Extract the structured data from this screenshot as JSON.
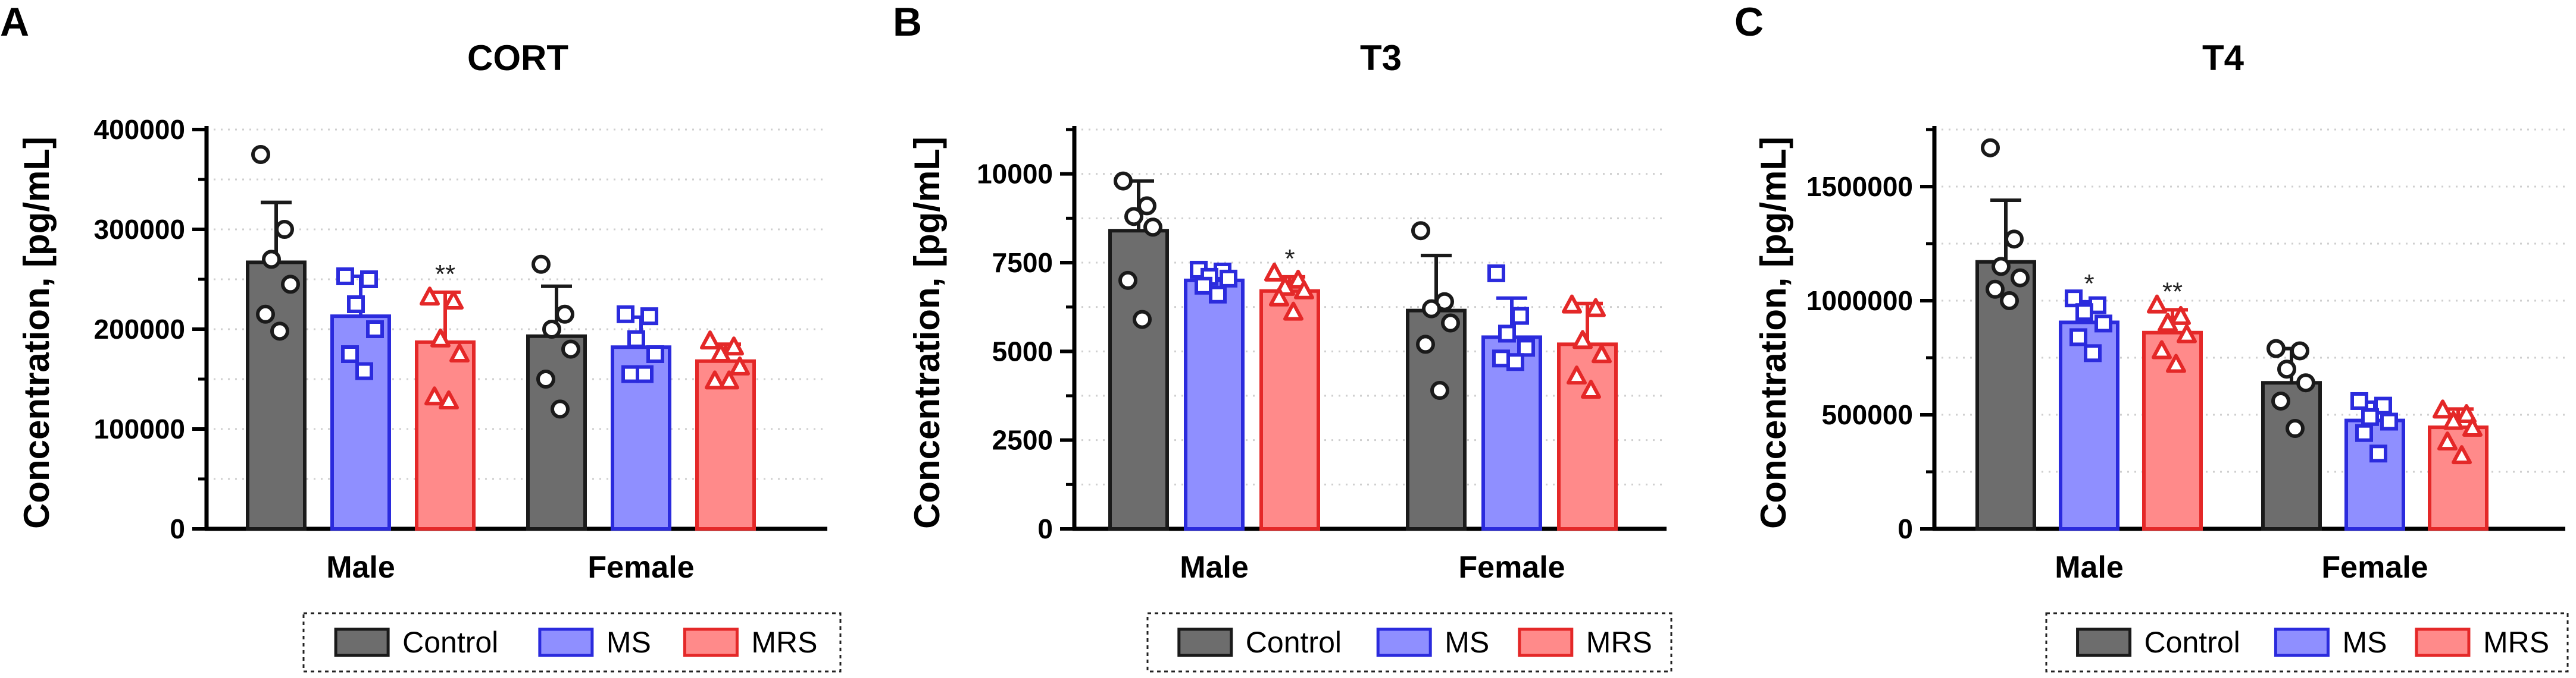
{
  "colors": {
    "control": "#6d6d6d",
    "ms": "#8f8fff",
    "mrs": "#ff8a8a",
    "control_edge": "#1a1a1a",
    "ms_edge": "#2b2bdd",
    "mrs_edge": "#e42828",
    "grid": "#cfcfcf"
  },
  "legend": {
    "control": "Control",
    "ms": "MS",
    "mrs": "MRS"
  },
  "chart_data": [
    {
      "panel_letter": "A",
      "type": "bar",
      "title": "CORT",
      "ylabel": "Concentration, [pg/mL]",
      "xlabel": "",
      "ylim": [
        0,
        400000
      ],
      "y_ticks": [
        0,
        100000,
        200000,
        300000,
        400000
      ],
      "y_tick_labels": [
        "0",
        "100000",
        "200000",
        "300000",
        "400000"
      ],
      "categories": [
        "Male",
        "Female"
      ],
      "series": [
        {
          "name": "Control",
          "key": "control",
          "values": [
            267000,
            193000
          ],
          "sd": [
            60000,
            50000
          ],
          "points": [
            [
              375000,
              300000,
              270000,
              245000,
              215000,
              198000
            ],
            [
              265000,
              215000,
              200000,
              180000,
              150000,
              120000
            ]
          ]
        },
        {
          "name": "MS",
          "key": "ms",
          "values": [
            213000,
            182000
          ],
          "sd": [
            40000,
            30000
          ],
          "points": [
            [
              253000,
              250000,
              225000,
              200000,
              175000,
              158000
            ],
            [
              215000,
              213000,
              190000,
              175000,
              155000,
              155000
            ]
          ]
        },
        {
          "name": "MRS",
          "key": "mrs",
          "values": [
            187000,
            168000
          ],
          "sd": [
            50000,
            17000
          ],
          "points": [
            [
              232000,
              228000,
              190000,
              175000,
              132000,
              128000
            ],
            [
              188000,
              182000,
              175000,
              162000,
              148000,
              148000
            ]
          ]
        }
      ],
      "annotations": [
        {
          "category": 0,
          "series": 2,
          "text": "**"
        }
      ]
    },
    {
      "panel_letter": "B",
      "type": "bar",
      "title": "T3",
      "ylabel": "Concentration, [pg/mL]",
      "xlabel": "",
      "ylim": [
        0,
        11250
      ],
      "y_ticks": [
        0,
        2500,
        5000,
        7500,
        10000
      ],
      "y_tick_labels": [
        "0",
        "2500",
        "5000",
        "7500",
        "10000"
      ],
      "categories": [
        "Male",
        "Female"
      ],
      "series": [
        {
          "name": "Control",
          "key": "control",
          "values": [
            8400,
            6150
          ],
          "sd": [
            1400,
            1550
          ],
          "points": [
            [
              9800,
              9100,
              8800,
              8500,
              7000,
              5900
            ],
            [
              8400,
              6400,
              6200,
              5800,
              5200,
              3900
            ]
          ]
        },
        {
          "name": "MS",
          "key": "ms",
          "values": [
            7000,
            5400
          ],
          "sd": [
            300,
            1100
          ],
          "points": [
            [
              7300,
              7250,
              7100,
              7050,
              6850,
              6600
            ],
            [
              7200,
              6000,
              5500,
              5100,
              4800,
              4700
            ]
          ]
        },
        {
          "name": "MRS",
          "key": "mrs",
          "values": [
            6700,
            5200
          ],
          "sd": [
            400,
            1150
          ],
          "points": [
            [
              7200,
              7000,
              6800,
              6700,
              6500,
              6100
            ],
            [
              6300,
              6200,
              5300,
              4900,
              4300,
              3900
            ]
          ]
        }
      ],
      "annotations": [
        {
          "category": 0,
          "series": 2,
          "text": "*"
        }
      ]
    },
    {
      "panel_letter": "C",
      "type": "bar",
      "title": "T4",
      "ylabel": "Concentration, [pg/mL]",
      "xlabel": "",
      "ylim": [
        0,
        1750000
      ],
      "y_ticks": [
        0,
        500000,
        1000000,
        1500000
      ],
      "y_tick_labels": [
        "0",
        "500000",
        "1000000",
        "1500000"
      ],
      "categories": [
        "Male",
        "Female"
      ],
      "series": [
        {
          "name": "Control",
          "key": "control",
          "values": [
            1170000,
            640000
          ],
          "sd": [
            270000,
            150000
          ],
          "points": [
            [
              1670000,
              1270000,
              1150000,
              1100000,
              1050000,
              1000000
            ],
            [
              790000,
              780000,
              700000,
              640000,
              560000,
              440000
            ]
          ]
        },
        {
          "name": "MS",
          "key": "ms",
          "values": [
            905000,
            475000
          ],
          "sd": [
            90000,
            80000
          ],
          "points": [
            [
              1010000,
              980000,
              950000,
              900000,
              840000,
              770000
            ],
            [
              560000,
              540000,
              490000,
              470000,
              420000,
              330000
            ]
          ]
        },
        {
          "name": "MRS",
          "key": "mrs",
          "values": [
            860000,
            445000
          ],
          "sd": [
            100000,
            80000
          ],
          "points": [
            [
              980000,
              930000,
              900000,
              850000,
              780000,
              720000
            ],
            [
              520000,
              500000,
              470000,
              440000,
              380000,
              320000
            ]
          ]
        }
      ],
      "annotations": [
        {
          "category": 0,
          "series": 1,
          "text": "*"
        },
        {
          "category": 0,
          "series": 2,
          "text": "**"
        }
      ]
    }
  ]
}
